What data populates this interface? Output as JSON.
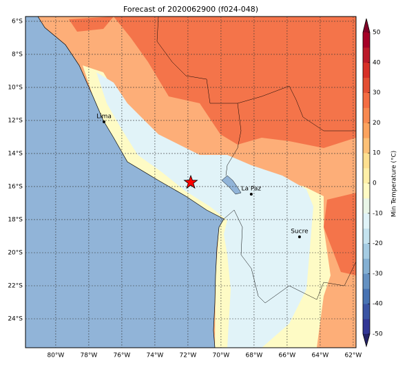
{
  "chart_data": {
    "type": "map",
    "title": "Forecast of 2020062900 (f024-048)",
    "xlim": [
      -81.83,
      -61.83
    ],
    "ylim": [
      -25.75,
      -5.71
    ],
    "xticks": [
      {
        "value": -80,
        "label": "80°W"
      },
      {
        "value": -78,
        "label": "78°W"
      },
      {
        "value": -76,
        "label": "76°W"
      },
      {
        "value": -74,
        "label": "74°W"
      },
      {
        "value": -72,
        "label": "72°W"
      },
      {
        "value": -70,
        "label": "70°W"
      },
      {
        "value": -68,
        "label": "68°W"
      },
      {
        "value": -66,
        "label": "66°W"
      },
      {
        "value": -64,
        "label": "64°W"
      },
      {
        "value": -62,
        "label": "62°W"
      }
    ],
    "yticks": [
      {
        "value": -6,
        "label": "6°S"
      },
      {
        "value": -8,
        "label": "8°S"
      },
      {
        "value": -10,
        "label": "10°S"
      },
      {
        "value": -12,
        "label": "12°S"
      },
      {
        "value": -14,
        "label": "14°S"
      },
      {
        "value": -16,
        "label": "16°S"
      },
      {
        "value": -18,
        "label": "18°S"
      },
      {
        "value": -20,
        "label": "20°S"
      },
      {
        "value": -22,
        "label": "22°S"
      },
      {
        "value": -24,
        "label": "24°S"
      }
    ],
    "grid": true,
    "cities": [
      {
        "name": "Lima",
        "lon": -77.08,
        "lat": -12.08
      },
      {
        "name": "La Paz",
        "lon": -68.17,
        "lat": -16.46
      },
      {
        "name": "Sucre",
        "lon": -65.25,
        "lat": -19.04
      }
    ],
    "star": {
      "lon": -71.83,
      "lat": -15.75,
      "color": "#ff0000"
    },
    "colorbar": {
      "label": "Min Temperature (°C)",
      "lim": [
        -50,
        50
      ],
      "ticks": [
        50,
        40,
        30,
        20,
        10,
        0,
        -10,
        -20,
        -30,
        -40,
        -50
      ],
      "colors": [
        "#313695",
        "#3a54a4",
        "#4873b3",
        "#6491c2",
        "#84b0d3",
        "#a5cce3",
        "#c5e3ef",
        "#e0f3f8",
        "#e9f6e8",
        "#fffbc4",
        "#fff0a8",
        "#fee090",
        "#fdc177",
        "#fca35e",
        "#f88950",
        "#f46d43",
        "#e34f33",
        "#d73027",
        "#bb1a29",
        "#a50026"
      ],
      "under": "#232266",
      "over": "#800026"
    }
  }
}
